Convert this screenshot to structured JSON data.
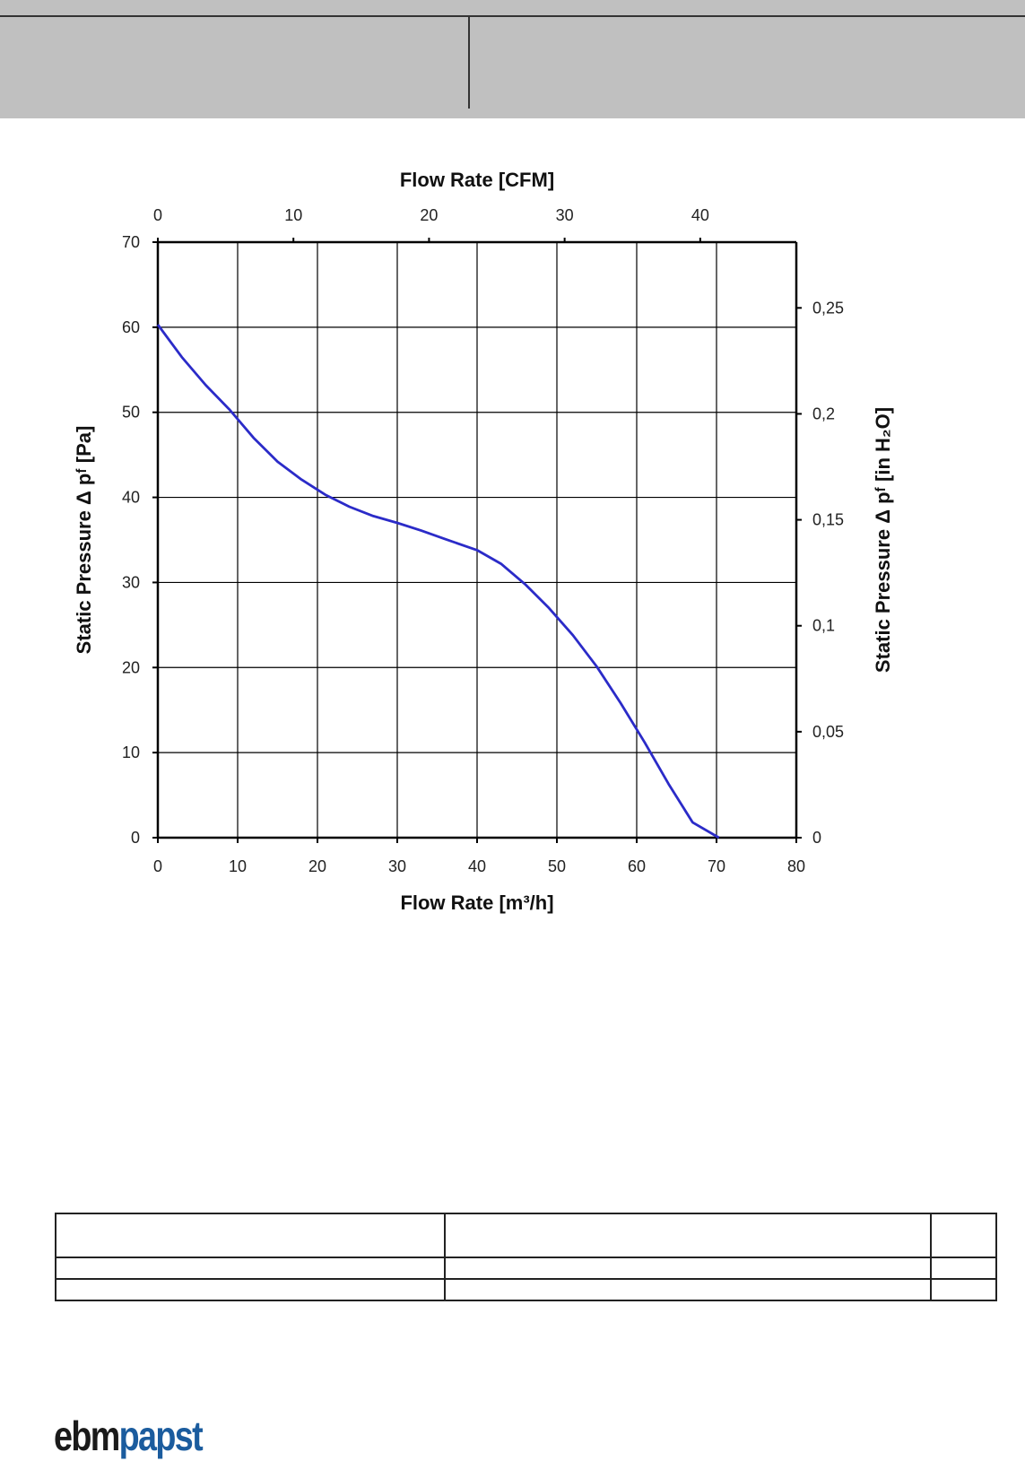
{
  "chart_data": {
    "type": "line",
    "xlabel_bottom": "Flow Rate [m³/h]",
    "xlabel_top": "Flow Rate [CFM]",
    "ylabel_left": "Static Pressure Δ pᶠ [Pa]",
    "ylabel_right": "Static Pressure Δ pᶠ [in H₂O]",
    "xlim": [
      0,
      80
    ],
    "ylim": [
      0,
      70
    ],
    "x_ticks": [
      0,
      10,
      20,
      30,
      40,
      50,
      60,
      70,
      80
    ],
    "y_ticks": [
      0,
      10,
      20,
      30,
      40,
      50,
      60,
      70
    ],
    "top_ticks_cfm": [
      0,
      10,
      20,
      30,
      40
    ],
    "right_ticks_inh2o": [
      "0",
      "0,05",
      "0,1",
      "0,15",
      "0,2",
      "0,25"
    ],
    "grid": true,
    "line_color": "#2b2bc8",
    "series": [
      {
        "x": [
          0,
          3,
          6,
          9,
          12,
          15,
          18,
          21,
          24,
          27,
          30,
          33,
          36,
          40,
          43,
          46,
          49,
          52,
          55,
          58,
          61,
          64,
          67,
          70.3
        ],
        "y": [
          60.3,
          56.5,
          53.2,
          50.3,
          47,
          44.2,
          42.1,
          40.3,
          38.9,
          37.8,
          37,
          36.1,
          35.1,
          33.8,
          32.2,
          29.8,
          27,
          23.8,
          20.1,
          15.8,
          11.2,
          6.3,
          1.8,
          0
        ]
      }
    ]
  },
  "logo": {
    "part1": "ebm",
    "part2": "papst"
  }
}
